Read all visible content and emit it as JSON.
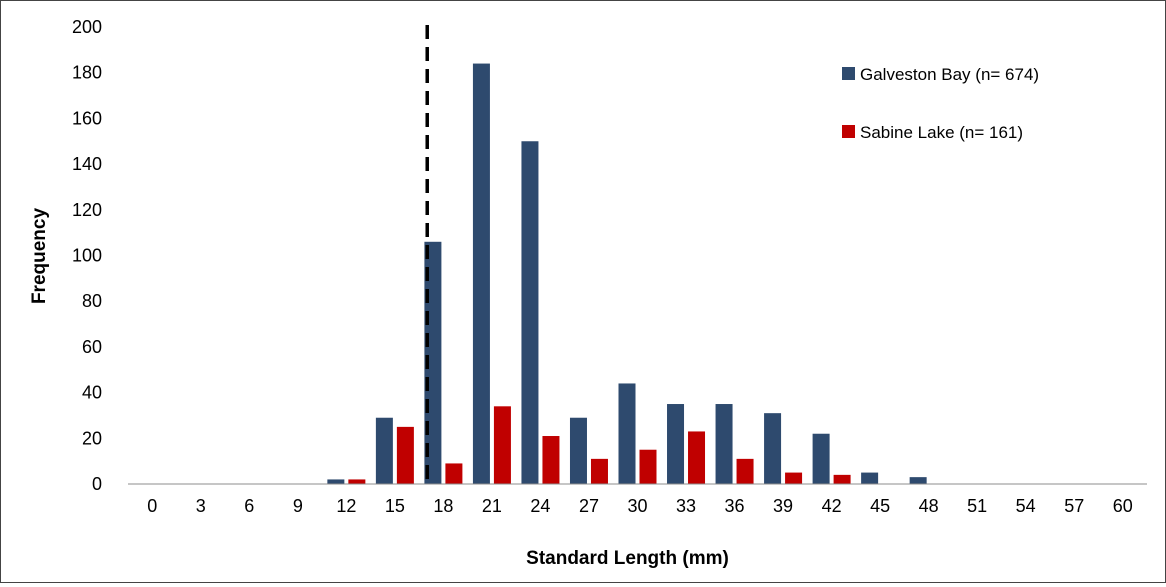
{
  "chart_data": {
    "type": "bar",
    "title": "",
    "xlabel": "Standard Length (mm)",
    "ylabel": "Frequency",
    "categories": [
      "0",
      "3",
      "6",
      "9",
      "12",
      "15",
      "18",
      "21",
      "24",
      "27",
      "30",
      "33",
      "36",
      "39",
      "42",
      "45",
      "48",
      "51",
      "54",
      "57",
      "60"
    ],
    "series": [
      {
        "name": "Galveston Bay (n= 674)",
        "color": "#2e4a6e",
        "values": [
          0,
          0,
          0,
          0,
          2,
          29,
          106,
          184,
          150,
          29,
          44,
          35,
          35,
          31,
          22,
          5,
          3,
          0,
          0,
          0,
          0
        ]
      },
      {
        "name": "Sabine Lake (n= 161)",
        "color": "#c00000",
        "values": [
          0,
          0,
          0,
          0,
          2,
          25,
          9,
          34,
          21,
          11,
          15,
          23,
          11,
          5,
          4,
          0,
          0,
          0,
          0,
          0,
          0
        ]
      }
    ],
    "ylim": [
      0,
      200
    ],
    "yticks": [
      0,
      20,
      40,
      60,
      80,
      100,
      120,
      140,
      160,
      180,
      200
    ],
    "reference_line": {
      "x": 17,
      "style": "dashed",
      "color": "#000000"
    },
    "grid": false,
    "legend_position": "top-right"
  }
}
